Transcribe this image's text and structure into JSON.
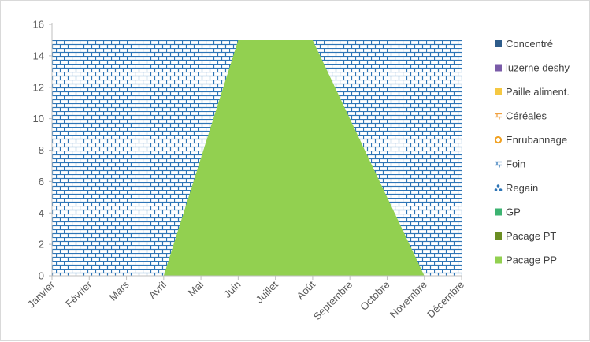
{
  "chart_data": {
    "type": "area",
    "title": "",
    "xlabel": "",
    "ylabel": "",
    "categories": [
      "Janvier",
      "Février",
      "Mars",
      "Avril",
      "Mai",
      "Juin",
      "Juillet",
      "Août",
      "Septembre",
      "Octobre",
      "Novembre",
      "Décembre"
    ],
    "ylim": [
      0,
      16
    ],
    "yticks": [
      0,
      2,
      4,
      6,
      8,
      10,
      12,
      14,
      16
    ],
    "grid": false,
    "legend_position": "right",
    "series": [
      {
        "name": "Concentré",
        "color": "#2e5c8a",
        "values": [
          0,
          0,
          0,
          0,
          0,
          0,
          0,
          0,
          0,
          0,
          0,
          0
        ]
      },
      {
        "name": "luzerne deshy",
        "color": "#7a5ba8",
        "values": [
          0,
          0,
          0,
          0,
          0,
          0,
          0,
          0,
          0,
          0,
          0,
          0
        ]
      },
      {
        "name": "Paille aliment.",
        "color": "#f5c842",
        "values": [
          0,
          0,
          0,
          0,
          0,
          0,
          0,
          0,
          0,
          0,
          0,
          0
        ]
      },
      {
        "name": "Céréales",
        "color": "#f0a040",
        "values": [
          0,
          0,
          0,
          0,
          0,
          0,
          0,
          0,
          0,
          0,
          0,
          0
        ]
      },
      {
        "name": "Enrubannage",
        "color": "#f0a020",
        "values": [
          0,
          0,
          0,
          0,
          0,
          0,
          0,
          0,
          0,
          0,
          0,
          0
        ]
      },
      {
        "name": "Foin",
        "color": "#2e75b6",
        "pattern": "brick",
        "values": [
          15,
          15,
          15,
          15,
          15,
          15,
          15,
          15,
          15,
          15,
          15,
          15
        ]
      },
      {
        "name": "Regain",
        "color": "#2e75b6",
        "values": [
          0,
          0,
          0,
          0,
          0,
          0,
          0,
          0,
          0,
          0,
          0,
          0
        ]
      },
      {
        "name": "GP",
        "color": "#3cb371",
        "values": [
          0,
          0,
          0,
          0,
          0,
          0,
          0,
          0,
          0,
          0,
          0,
          0
        ]
      },
      {
        "name": "Pacage PT",
        "color": "#6b8e23",
        "values": [
          0,
          0,
          0,
          0,
          0,
          0,
          0,
          0,
          0,
          0,
          0,
          0
        ]
      },
      {
        "name": "Pacage PP",
        "color": "#92d050",
        "values": [
          0,
          0,
          0,
          0,
          7.5,
          15,
          15,
          15,
          10,
          5,
          0,
          0
        ]
      }
    ]
  }
}
